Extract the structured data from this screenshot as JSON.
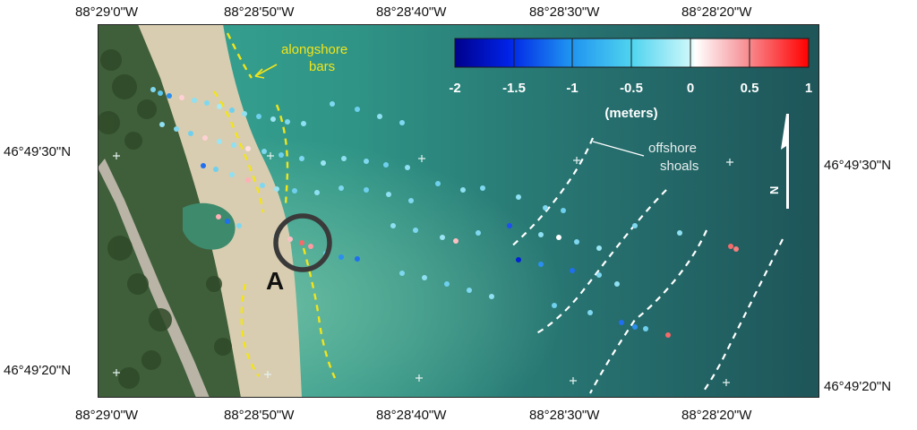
{
  "axes": {
    "top_longitudes": [
      "88°29'0\"W",
      "88°28'50\"W",
      "88°28'40\"W",
      "88°28'30\"W",
      "88°28'20\"W"
    ],
    "bottom_longitudes": [
      "88°29'0\"W",
      "88°28'50\"W",
      "88°28'40\"W",
      "88°28'30\"W",
      "88°28'20\"W"
    ],
    "left_latitudes": [
      "46°49'30\"N",
      "46°49'20\"N"
    ],
    "right_latitudes": [
      "46°49'30\"N",
      "46°49'20\"N"
    ]
  },
  "legend": {
    "ticks": [
      "-2",
      "-1.5",
      "-1",
      "-0.5",
      "0",
      "0.5",
      "1"
    ],
    "unit": "(meters)",
    "colors": [
      "#00008c",
      "#0033ff",
      "#22b8ee",
      "#c8f6fa",
      "#ffd0d4",
      "#f24040",
      "#ff0000"
    ]
  },
  "annotations": {
    "alongshore_1": "alongshore",
    "alongshore_2": "bars",
    "offshore_1": "offshore",
    "offshore_2": "shoals",
    "site_label": "A",
    "north": "N"
  },
  "colors": {
    "water_deep": "#215d60",
    "water_shallow": "#2f9a8c",
    "sand": "#d9cfb2",
    "bar_line": "#f2e41a",
    "shoal_line": "#ffffff",
    "circle": "#3a3a3a"
  }
}
